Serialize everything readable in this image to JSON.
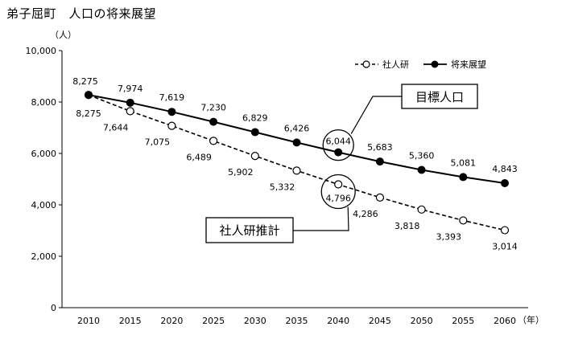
{
  "chart_data": {
    "type": "line",
    "title": "弟子屈町　人口の将来展望",
    "y_unit": "（人）",
    "x_unit": "（年）",
    "ylim": [
      0,
      10000
    ],
    "yticks": [
      0,
      2000,
      4000,
      6000,
      8000,
      10000
    ],
    "ytick_labels": [
      "0",
      "2,000",
      "4,000",
      "6,000",
      "8,000",
      "10,000"
    ],
    "categories": [
      "2010",
      "2015",
      "2020",
      "2025",
      "2030",
      "2035",
      "2040",
      "2045",
      "2050",
      "2055",
      "2060"
    ],
    "series": [
      {
        "name": "社人研",
        "style": "dashed-open-marker",
        "values": [
          8275,
          7644,
          7075,
          6489,
          5902,
          5332,
          4796,
          4286,
          3818,
          3393,
          3014
        ],
        "labels": [
          "8,275",
          "7,644",
          "7,075",
          "6,489",
          "5,902",
          "5,332",
          "4,796",
          "4,286",
          "3,818",
          "3,393",
          "3,014"
        ]
      },
      {
        "name": "将来展望",
        "style": "solid-filled-marker",
        "values": [
          8275,
          7974,
          7619,
          7230,
          6829,
          6426,
          6044,
          5683,
          5360,
          5081,
          4843
        ],
        "labels": [
          "8,275",
          "7,974",
          "7,619",
          "7,230",
          "6,829",
          "6,426",
          "6,044",
          "5,683",
          "5,360",
          "5,081",
          "4,843"
        ]
      }
    ],
    "annotations": [
      {
        "text": "目標人口",
        "target_series": "将来展望",
        "target_category": "2040"
      },
      {
        "text": "社人研推計",
        "target_series": "社人研",
        "target_category": "2040"
      }
    ],
    "legend_position": "top-right",
    "grid": false,
    "colors": {
      "line": "#000000",
      "open_marker_fill": "#ffffff",
      "filled_marker": "#000000"
    }
  }
}
